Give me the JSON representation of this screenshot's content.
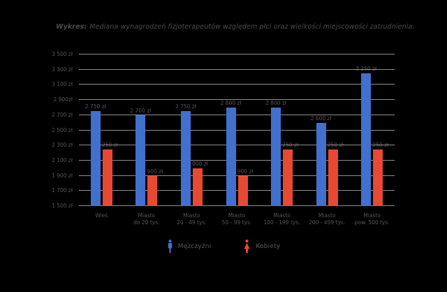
{
  "title": {
    "prefix": "Wykres:",
    "text": "Mediana wynagrodzeń fizjoterapeutów względem płci oraz wielkości miejscowości zatrudnienia."
  },
  "colors": {
    "background": "#000000",
    "men_bar": "#4170CE",
    "women_bar": "#E64A33",
    "gridline": "#8e8e8e",
    "axis_text": "#565656",
    "title_text": "#4b4b4b"
  },
  "chart_data": {
    "type": "bar",
    "title": "Wykres: Mediana wynagrodzeń fizjoterapeutów względem płci oraz wielkości miejscowości zatrudnienia.",
    "xlabel": "",
    "ylabel": "",
    "grid": true,
    "legend_position": "bottom",
    "ylim": [
      1500,
      3500
    ],
    "categories": [
      [
        "Wieś",
        ""
      ],
      [
        "Miasto",
        "do 20 tys."
      ],
      [
        "Miasto",
        "20 - 49 tys."
      ],
      [
        "Miasto",
        "50 - 99 tys."
      ],
      [
        "Miasto",
        "100 - 199 tys."
      ],
      [
        "Miasto",
        "200 - 499 tys."
      ],
      [
        "Miasto",
        "pow. 500 tys."
      ]
    ],
    "series": [
      {
        "name": "Mężczyźni",
        "color": "#4170CE",
        "icon": "man-icon",
        "values": [
          2750,
          2700,
          2750,
          2800,
          2800,
          2600,
          3250
        ],
        "labels": [
          "2 750 zł",
          "2 700 zł",
          "2 750 zł",
          "2 800 zł",
          "2 800 zł",
          "2 600 zł",
          "3 250 zł"
        ]
      },
      {
        "name": "Kobiety",
        "color": "#E64A33",
        "icon": "woman-icon",
        "values": [
          2250,
          1900,
          2000,
          1900,
          2250,
          2250,
          2250
        ],
        "labels": [
          "2 250 zł",
          "1 900 zł",
          "2 000 zł",
          "1 900 zł",
          "2 250 zł",
          "2 250 zł",
          "2 250 zł"
        ]
      }
    ],
    "y_axis": {
      "min": 1500,
      "max": 3500,
      "step": 200,
      "tick_labels": [
        "1 500 zł",
        "1 700 zł",
        "1 900 zł",
        "2 100 zł",
        "2 300 zł",
        "2 500 zł",
        "2 700 zł",
        "2 900zł",
        "3 100 zł",
        "3 300 zł",
        "3 500 zł"
      ]
    },
    "legend": [
      {
        "label": "Mężczyźni",
        "icon": "man-icon",
        "color": "#4170CE"
      },
      {
        "label": "Kobiety",
        "icon": "woman-icon",
        "color": "#E64A33"
      }
    ]
  }
}
